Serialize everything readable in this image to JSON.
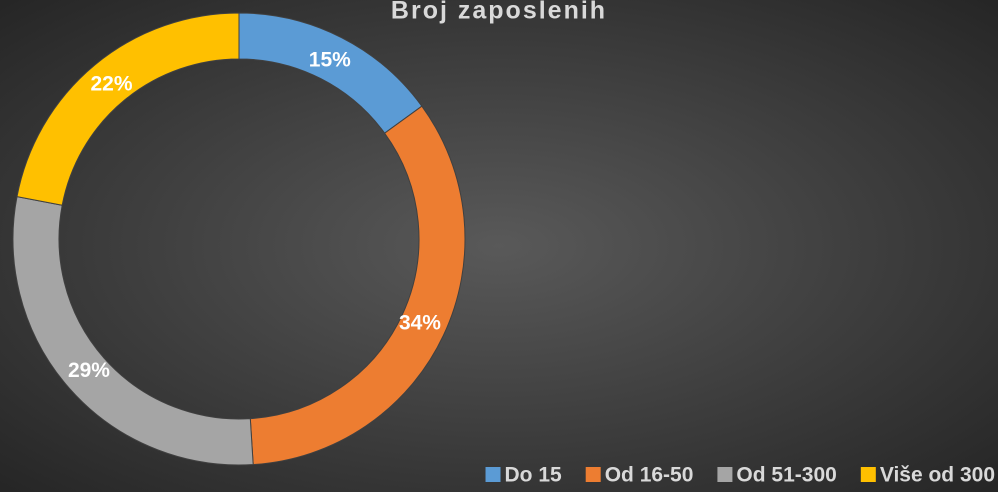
{
  "chart_data": {
    "type": "donut",
    "title": "Broj zaposlenih",
    "categories": [
      "Do 15",
      "Od 16-50",
      "Od 51-300",
      "Više od 300"
    ],
    "values": [
      15,
      34,
      29,
      22
    ],
    "value_labels": [
      "15%",
      "34%",
      "29%",
      "22%"
    ],
    "colors": [
      "#5b9bd5",
      "#ed7d31",
      "#a5a5a5",
      "#ffc000"
    ],
    "legend": "bottom-right"
  }
}
